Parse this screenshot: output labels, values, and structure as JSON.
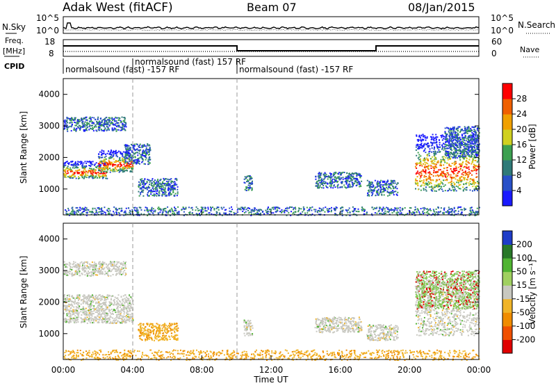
{
  "header": {
    "station": "Adak West (fitACF)",
    "beam": "Beam 07",
    "date": "08/Jan/2015"
  },
  "noise_panel": {
    "left_label": "N.Sky",
    "left_ticks": [
      "10^5",
      "10^0"
    ],
    "right_label": "N.Search",
    "right_ticks": [
      "10^5",
      "10^0"
    ]
  },
  "freq_panel": {
    "left_label_line1": "Freq.",
    "left_label_line2": "[MHz]",
    "left_ticks": [
      "18",
      "8"
    ],
    "right_label": "Nave",
    "right_ticks": [
      "60",
      "0"
    ]
  },
  "cpid": {
    "label": "CPID",
    "segments": [
      {
        "text": "normalsound (fast) -157 RF",
        "start_hour": 0
      },
      {
        "text": "normalsound (fast) 157 RF",
        "start_hour": 4
      },
      {
        "text": "normalsound (fast) -157 RF",
        "start_hour": 10
      }
    ]
  },
  "time_axis": {
    "title": "Time UT",
    "ticks": [
      "00:00",
      "04:00",
      "08:00",
      "12:00",
      "16:00",
      "20:00",
      "00:00"
    ]
  },
  "chart_data": [
    {
      "type": "heatmap",
      "name_text": "Power",
      "ylabel": "Slant Range [km]",
      "yticks": [
        "1000",
        "2000",
        "3000",
        "4000"
      ],
      "ylim": [
        180,
        4500
      ],
      "xlim_hours": [
        0,
        24
      ],
      "colorbar": {
        "label": "Power [dB]",
        "ticks": [
          "4",
          "8",
          "12",
          "16",
          "20",
          "24",
          "28"
        ],
        "colors": [
          "#1a1aff",
          "#2850c8",
          "#2f7a78",
          "#3ca050",
          "#d0d020",
          "#f0a000",
          "#f06000",
          "#ff0000"
        ]
      },
      "scatter_regions_hours_km": [
        {
          "t0": 0.0,
          "t1": 2.5,
          "r0": 1350,
          "r1": 1900,
          "core": true
        },
        {
          "t0": 2.0,
          "t1": 4.0,
          "r0": 1550,
          "r1": 2250,
          "core": true
        },
        {
          "t0": 3.5,
          "t1": 5.0,
          "r0": 1800,
          "r1": 2450,
          "core": false
        },
        {
          "t0": 0.0,
          "t1": 3.6,
          "r0": 2850,
          "r1": 3300,
          "core": false
        },
        {
          "t0": 4.3,
          "t1": 6.6,
          "r0": 800,
          "r1": 1350,
          "core": false
        },
        {
          "t0": 10.4,
          "t1": 10.9,
          "r0": 950,
          "r1": 1450,
          "core": false
        },
        {
          "t0": 14.5,
          "t1": 17.2,
          "r0": 1050,
          "r1": 1550,
          "core": false
        },
        {
          "t0": 17.5,
          "t1": 19.3,
          "r0": 800,
          "r1": 1300,
          "core": false
        },
        {
          "t0": 20.3,
          "t1": 24.0,
          "r0": 950,
          "r1": 2750,
          "core": true
        },
        {
          "t0": 22.0,
          "t1": 24.0,
          "r0": 2000,
          "r1": 3000,
          "core": false
        },
        {
          "t0": 0.0,
          "t1": 24.0,
          "r0": 180,
          "r1": 450,
          "core": false
        }
      ]
    },
    {
      "type": "heatmap",
      "name_text": "Velocity",
      "ylabel": "Slant Range [km]",
      "yticks": [
        "1000",
        "2000",
        "3000",
        "4000"
      ],
      "ylim": [
        180,
        4500
      ],
      "xlim_hours": [
        0,
        24
      ],
      "colorbar": {
        "label": "Velocity [m s⁻¹]",
        "ticks": [
          "200",
          "100",
          "50",
          "15",
          "-15",
          "-50",
          "-100",
          "-200"
        ],
        "colors": [
          "#1e3cc8",
          "#287828",
          "#50b432",
          "#a0d060",
          "#c8c8c0",
          "#f0b428",
          "#f08c00",
          "#f05000",
          "#e00000"
        ]
      },
      "scatter_regions_hours_km": [
        {
          "t0": 0.0,
          "t1": 4.0,
          "r0": 1350,
          "r1": 2250,
          "tone": "gray"
        },
        {
          "t0": 0.0,
          "t1": 3.6,
          "r0": 2850,
          "r1": 3300,
          "tone": "gray"
        },
        {
          "t0": 4.3,
          "t1": 6.6,
          "r0": 800,
          "r1": 1350,
          "tone": "orange"
        },
        {
          "t0": 10.4,
          "t1": 10.9,
          "r0": 950,
          "r1": 1450,
          "tone": "gray"
        },
        {
          "t0": 14.5,
          "t1": 17.2,
          "r0": 1050,
          "r1": 1550,
          "tone": "gray"
        },
        {
          "t0": 17.5,
          "t1": 19.3,
          "r0": 800,
          "r1": 1300,
          "tone": "gray"
        },
        {
          "t0": 20.3,
          "t1": 24.0,
          "r0": 950,
          "r1": 2750,
          "tone": "gray"
        },
        {
          "t0": 20.3,
          "t1": 24.0,
          "r0": 1800,
          "r1": 3000,
          "tone": "green"
        },
        {
          "t0": 0.0,
          "t1": 24.0,
          "r0": 180,
          "r1": 500,
          "tone": "orange"
        }
      ]
    }
  ]
}
